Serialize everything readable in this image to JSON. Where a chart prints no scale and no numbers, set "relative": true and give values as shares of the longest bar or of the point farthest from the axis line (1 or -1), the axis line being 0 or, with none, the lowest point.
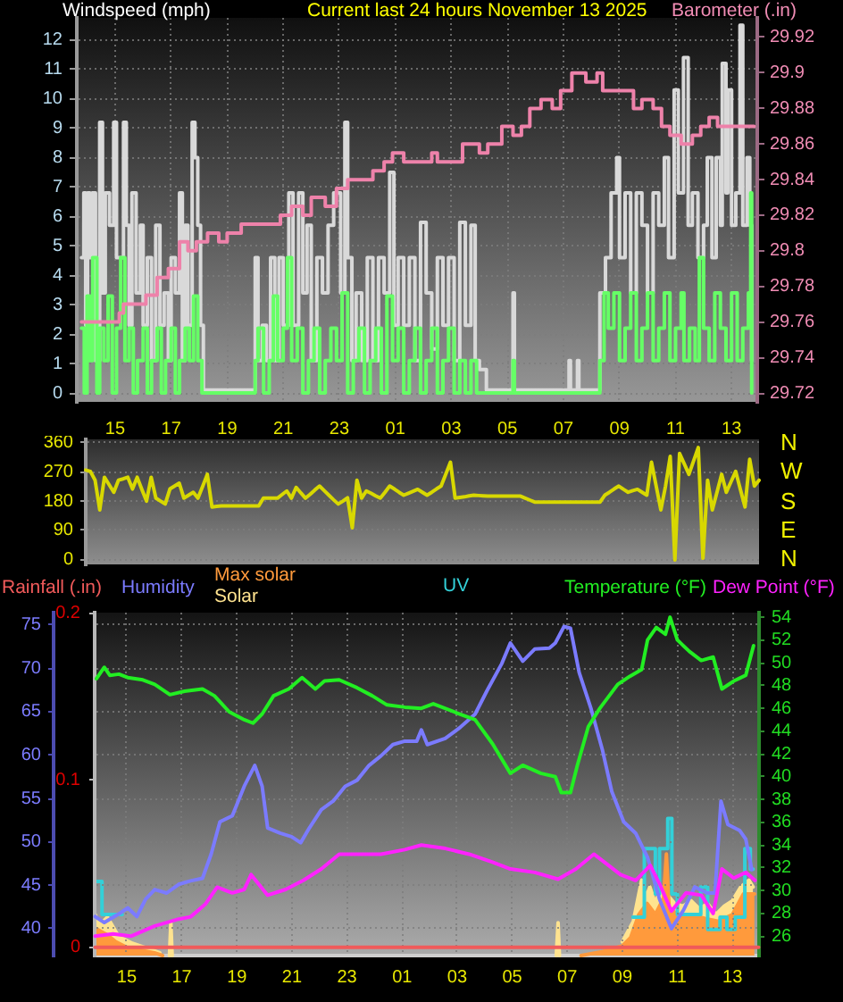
{
  "chart_data": [
    {
      "type": "step",
      "title": "Current last 24 hours November 13 2025",
      "ylabel": "Windspeed (mph)",
      "y2label": "Barometer (.in)",
      "xlim": [
        "2025-11-12T13:38",
        "2025-11-13T13:55"
      ],
      "xticks": [
        {
          "value": "2025-11-12T15:00",
          "label": "15"
        },
        {
          "value": "2025-11-12T17:00",
          "label": "17"
        },
        {
          "value": "2025-11-12T19:00",
          "label": "19"
        },
        {
          "value": "2025-11-12T21:00",
          "label": "21"
        },
        {
          "value": "2025-11-12T23:00",
          "label": "23"
        },
        {
          "value": "2025-11-13T01:00",
          "label": "01"
        },
        {
          "value": "2025-11-13T03:00",
          "label": "03"
        },
        {
          "value": "2025-11-13T05:00",
          "label": "05"
        },
        {
          "value": "2025-11-13T07:00",
          "label": "07"
        },
        {
          "value": "2025-11-13T09:00",
          "label": "09"
        },
        {
          "value": "2025-11-13T11:00",
          "label": "11"
        },
        {
          "value": "2025-11-13T13:00",
          "label": "13"
        }
      ],
      "ylim": [
        -0.3,
        12.75
      ],
      "yticks": [
        0,
        1,
        2,
        3,
        4,
        5,
        6,
        7,
        8,
        9,
        10,
        11,
        12
      ],
      "y2lim": [
        29.715,
        29.931
      ],
      "y2ticks": [
        29.72,
        29.74,
        29.76,
        29.78,
        29.8,
        29.82,
        29.84,
        29.86,
        29.88,
        29.9,
        29.92
      ],
      "grid": true,
      "series": [
        {
          "color": "#d9d9d9",
          "x": [
            "2025-11-12T13:48",
            "2025-11-12T13:53",
            "2025-11-12T13:57",
            "2025-11-12T14:01",
            "2025-11-12T14:06",
            "2025-11-12T14:11",
            "2025-11-12T14:18",
            "2025-11-12T14:27",
            "2025-11-12T14:33",
            "2025-11-12T14:39",
            "2025-11-12T14:48",
            "2025-11-12T14:57",
            "2025-11-12T15:03",
            "2025-11-12T15:18",
            "2025-11-12T15:24",
            "2025-11-12T15:30",
            "2025-11-12T15:36",
            "2025-11-12T15:45",
            "2025-11-12T15:54",
            "2025-11-12T16:00",
            "2025-11-12T16:09",
            "2025-11-12T16:18",
            "2025-11-12T16:27",
            "2025-11-12T16:36",
            "2025-11-12T16:45",
            "2025-11-12T16:54",
            "2025-11-12T17:00",
            "2025-11-12T17:09",
            "2025-11-12T17:18",
            "2025-11-12T17:24",
            "2025-11-12T17:30",
            "2025-11-12T17:36",
            "2025-11-12T17:45",
            "2025-11-12T17:51",
            "2025-11-12T17:57",
            "2025-11-12T18:03",
            "2025-11-12T18:09",
            "2025-11-12T20:00",
            "2025-11-12T20:06",
            "2025-11-12T20:15",
            "2025-11-12T20:24",
            "2025-11-12T20:33",
            "2025-11-12T20:42",
            "2025-11-12T20:51",
            "2025-11-12T21:00",
            "2025-11-12T21:12",
            "2025-11-12T21:21",
            "2025-11-12T21:33",
            "2025-11-12T21:42",
            "2025-11-12T21:51",
            "2025-11-12T22:00",
            "2025-11-12T22:12",
            "2025-11-12T22:24",
            "2025-11-12T22:36",
            "2025-11-12T22:48",
            "2025-11-12T23:03",
            "2025-11-12T23:12",
            "2025-11-12T23:18",
            "2025-11-12T23:27",
            "2025-11-12T23:36",
            "2025-11-12T23:48",
            "2025-11-13T00:00",
            "2025-11-13T00:12",
            "2025-11-13T00:24",
            "2025-11-13T00:36",
            "2025-11-13T00:48",
            "2025-11-13T00:57",
            "2025-11-13T01:06",
            "2025-11-13T01:18",
            "2025-11-13T01:30",
            "2025-11-13T01:42",
            "2025-11-13T01:54",
            "2025-11-13T02:06",
            "2025-11-13T02:18",
            "2025-11-13T02:30",
            "2025-11-13T02:42",
            "2025-11-13T02:54",
            "2025-11-13T03:06",
            "2025-11-13T03:18",
            "2025-11-13T03:30",
            "2025-11-13T03:42",
            "2025-11-13T03:51",
            "2025-11-13T04:00",
            "2025-11-13T04:15",
            "2025-11-13T05:12",
            "2025-11-13T05:15",
            "2025-11-13T07:12",
            "2025-11-13T07:15",
            "2025-11-13T07:30",
            "2025-11-13T07:33",
            "2025-11-13T08:18",
            "2025-11-13T08:30",
            "2025-11-13T08:42",
            "2025-11-13T08:54",
            "2025-11-13T09:00",
            "2025-11-13T09:12",
            "2025-11-13T09:24",
            "2025-11-13T09:36",
            "2025-11-13T09:48",
            "2025-11-13T10:00",
            "2025-11-13T10:12",
            "2025-11-13T10:24",
            "2025-11-13T10:36",
            "2025-11-13T10:45",
            "2025-11-13T10:57",
            "2025-11-13T11:06",
            "2025-11-13T11:17",
            "2025-11-13T11:27",
            "2025-11-13T11:36",
            "2025-11-13T11:48",
            "2025-11-13T12:00",
            "2025-11-13T12:08",
            "2025-11-13T12:18",
            "2025-11-13T12:27",
            "2025-11-13T12:36",
            "2025-11-13T12:40",
            "2025-11-13T12:48",
            "2025-11-13T12:52",
            "2025-11-13T13:00",
            "2025-11-13T13:09",
            "2025-11-13T13:18",
            "2025-11-13T13:24",
            "2025-11-13T13:33",
            "2025-11-13T13:39",
            "2025-11-13T13:43"
          ],
          "values": [
            4.6,
            6.8,
            2.3,
            6.8,
            4.6,
            6.8,
            1.1,
            9.2,
            3.4,
            6.8,
            5.7,
            9.2,
            4.6,
            9.2,
            5.7,
            2.3,
            6.8,
            3.4,
            5.7,
            2.3,
            4.6,
            1.1,
            5.7,
            2.3,
            3.4,
            1.1,
            4.6,
            3.4,
            6.8,
            1.1,
            5.7,
            2.3,
            9.2,
            8.0,
            5.7,
            2.3,
            0.1,
            4.6,
            1.1,
            2.3,
            1.1,
            4.6,
            1.1,
            4.6,
            2.3,
            6.8,
            2.3,
            6.8,
            3.4,
            5.7,
            1.1,
            4.6,
            3.4,
            5.7,
            6.8,
            3.4,
            9.2,
            4.6,
            1.1,
            3.4,
            1.1,
            4.6,
            1.1,
            4.6,
            3.4,
            7.5,
            2.3,
            4.6,
            2.3,
            4.6,
            1.1,
            5.8,
            3.4,
            1.5,
            4.6,
            2.3,
            4.6,
            1.1,
            5.8,
            2.3,
            5.7,
            1.1,
            0.8,
            0.1,
            3.4,
            0.1,
            1.1,
            0.1,
            1.1,
            0.1,
            3.4,
            4.6,
            6.8,
            8.0,
            4.6,
            6.8,
            3.4,
            6.8,
            5.7,
            3.4,
            6.8,
            5.7,
            8.0,
            4.6,
            10.3,
            6.8,
            11.4,
            5.7,
            6.8,
            4.6,
            5.7,
            8.0,
            4.6,
            8.0,
            5.7,
            11.2,
            6.8,
            10.3,
            5.7,
            6.8,
            12.5,
            5.7,
            8.0,
            5.7,
            1.1
          ]
        },
        {
          "color": "#66ff66",
          "x": [
            "2025-11-12T13:48",
            "2025-11-12T13:54",
            "2025-11-12T14:00",
            "2025-11-12T14:06",
            "2025-11-12T14:12",
            "2025-11-12T14:21",
            "2025-11-12T14:27",
            "2025-11-12T14:36",
            "2025-11-12T14:45",
            "2025-11-12T14:54",
            "2025-11-12T15:03",
            "2025-11-12T15:12",
            "2025-11-12T15:21",
            "2025-11-12T15:30",
            "2025-11-12T15:39",
            "2025-11-12T15:48",
            "2025-11-12T16:00",
            "2025-11-12T16:09",
            "2025-11-12T16:18",
            "2025-11-12T16:30",
            "2025-11-12T16:39",
            "2025-11-12T16:48",
            "2025-11-12T17:00",
            "2025-11-12T17:09",
            "2025-11-12T17:18",
            "2025-11-12T17:30",
            "2025-11-12T17:39",
            "2025-11-12T17:48",
            "2025-11-12T17:57",
            "2025-11-12T18:06",
            "2025-11-12T20:00",
            "2025-11-12T20:06",
            "2025-11-12T20:18",
            "2025-11-12T20:30",
            "2025-11-12T20:39",
            "2025-11-12T20:48",
            "2025-11-12T21:00",
            "2025-11-12T21:09",
            "2025-11-12T21:18",
            "2025-11-12T21:30",
            "2025-11-12T21:42",
            "2025-11-12T21:54",
            "2025-11-12T22:06",
            "2025-11-12T22:18",
            "2025-11-12T22:30",
            "2025-11-12T22:42",
            "2025-11-12T22:54",
            "2025-11-12T23:06",
            "2025-11-12T23:18",
            "2025-11-12T23:30",
            "2025-11-12T23:42",
            "2025-11-12T23:54",
            "2025-11-13T00:06",
            "2025-11-13T00:18",
            "2025-11-13T00:30",
            "2025-11-13T00:42",
            "2025-11-13T00:54",
            "2025-11-13T01:06",
            "2025-11-13T01:18",
            "2025-11-13T01:30",
            "2025-11-13T01:42",
            "2025-11-13T01:54",
            "2025-11-13T02:06",
            "2025-11-13T02:18",
            "2025-11-13T02:30",
            "2025-11-13T02:42",
            "2025-11-13T02:54",
            "2025-11-13T03:06",
            "2025-11-13T03:18",
            "2025-11-13T03:30",
            "2025-11-13T03:42",
            "2025-11-13T03:54",
            "2025-11-13T05:12",
            "2025-11-13T05:15",
            "2025-11-13T08:18",
            "2025-11-13T08:27",
            "2025-11-13T08:36",
            "2025-11-13T08:48",
            "2025-11-13T09:00",
            "2025-11-13T09:12",
            "2025-11-13T09:24",
            "2025-11-13T09:36",
            "2025-11-13T09:48",
            "2025-11-13T10:00",
            "2025-11-13T10:12",
            "2025-11-13T10:24",
            "2025-11-13T10:36",
            "2025-11-13T10:48",
            "2025-11-13T11:00",
            "2025-11-13T11:12",
            "2025-11-13T11:18",
            "2025-11-13T11:30",
            "2025-11-13T11:42",
            "2025-11-13T11:51",
            "2025-11-13T12:00",
            "2025-11-13T12:12",
            "2025-11-13T12:24",
            "2025-11-13T12:36",
            "2025-11-13T12:48",
            "2025-11-13T13:00",
            "2025-11-13T13:12",
            "2025-11-13T13:24",
            "2025-11-13T13:36",
            "2025-11-13T13:41",
            "2025-11-13T13:43"
          ],
          "values": [
            2.2,
            0,
            3.3,
            1.1,
            4.6,
            0,
            2.2,
            1.1,
            3.3,
            0,
            2.2,
            4.6,
            1.1,
            2.2,
            0,
            1.1,
            2.2,
            0,
            1.1,
            2.2,
            0,
            1.1,
            2.2,
            0,
            1.1,
            2.2,
            1.1,
            3.3,
            1.1,
            0,
            1.1,
            2.2,
            0,
            1.1,
            3.3,
            1.1,
            2.2,
            4.6,
            1.1,
            2.2,
            0,
            1.1,
            2.2,
            0,
            1.1,
            2.2,
            1.1,
            3.4,
            0,
            1.1,
            2.2,
            0,
            1.1,
            2.2,
            0,
            3.3,
            1.1,
            2.2,
            0,
            1.1,
            2.2,
            0,
            1.1,
            2.2,
            0,
            1.1,
            2.2,
            0,
            1.1,
            0,
            1.1,
            0,
            1.1,
            0,
            1.1,
            3.4,
            2.2,
            3.4,
            1.1,
            2.2,
            3.4,
            1.1,
            2.2,
            3.4,
            1.1,
            2.2,
            3.4,
            1.1,
            2.2,
            3.4,
            1.1,
            2.2,
            1.1,
            4.6,
            2.2,
            1.1,
            3.4,
            2.2,
            1.1,
            3.4,
            1.1,
            2.2,
            3.4,
            6.8,
            0
          ]
        },
        {
          "color": "#ee82aa",
          "axis": "y2",
          "x": [
            "2025-11-12T13:48",
            "2025-11-12T15:09",
            "2025-11-12T15:18",
            "2025-11-12T16:06",
            "2025-11-12T16:30",
            "2025-11-12T16:54",
            "2025-11-12T17:18",
            "2025-11-12T17:36",
            "2025-11-12T17:54",
            "2025-11-12T18:18",
            "2025-11-12T18:42",
            "2025-11-12T19:00",
            "2025-11-12T19:30",
            "2025-11-12T20:18",
            "2025-11-12T20:54",
            "2025-11-12T21:18",
            "2025-11-12T21:42",
            "2025-11-12T22:00",
            "2025-11-12T22:30",
            "2025-11-12T22:54",
            "2025-11-12T23:18",
            "2025-11-12T23:48",
            "2025-11-13T00:12",
            "2025-11-13T00:36",
            "2025-11-13T00:54",
            "2025-11-13T01:18",
            "2025-11-13T01:54",
            "2025-11-13T02:18",
            "2025-11-13T02:30",
            "2025-11-13T03:00",
            "2025-11-13T03:24",
            "2025-11-13T04:00",
            "2025-11-13T04:18",
            "2025-11-13T04:48",
            "2025-11-13T05:12",
            "2025-11-13T05:30",
            "2025-11-13T05:48",
            "2025-11-13T06:12",
            "2025-11-13T06:36",
            "2025-11-13T06:54",
            "2025-11-13T07:18",
            "2025-11-13T07:48",
            "2025-11-13T08:12",
            "2025-11-13T08:24",
            "2025-11-13T09:12",
            "2025-11-13T09:30",
            "2025-11-13T09:48",
            "2025-11-13T10:12",
            "2025-11-13T10:30",
            "2025-11-13T10:48",
            "2025-11-13T11:12",
            "2025-11-13T11:36",
            "2025-11-13T11:54",
            "2025-11-13T12:12",
            "2025-11-13T12:30",
            "2025-11-13T13:00",
            "2025-11-13T13:48"
          ],
          "values": [
            29.76,
            29.765,
            29.77,
            29.775,
            29.785,
            29.79,
            29.805,
            29.8,
            29.805,
            29.81,
            29.805,
            29.81,
            29.815,
            29.815,
            29.82,
            29.825,
            29.82,
            29.83,
            29.825,
            29.835,
            29.84,
            29.84,
            29.845,
            29.85,
            29.855,
            29.85,
            29.85,
            29.855,
            29.85,
            29.85,
            29.86,
            29.855,
            29.86,
            29.87,
            29.865,
            29.87,
            29.88,
            29.885,
            29.88,
            29.89,
            29.9,
            29.895,
            29.9,
            29.89,
            29.89,
            29.88,
            29.885,
            29.88,
            29.87,
            29.865,
            29.86,
            29.865,
            29.87,
            29.875,
            29.87,
            29.87,
            29.87
          ]
        }
      ]
    },
    {
      "type": "line",
      "categories": [
        null,
        null,
        null,
        null,
        null,
        null,
        null,
        null,
        null,
        null,
        null,
        null,
        null,
        null,
        null,
        null,
        null,
        null,
        null,
        null,
        null,
        null,
        null,
        null,
        null,
        null,
        null,
        null,
        null,
        null,
        null,
        null,
        null,
        null,
        null,
        null,
        null,
        null,
        null,
        null,
        null,
        null,
        null,
        null,
        null,
        null,
        null,
        null,
        null,
        null,
        null,
        null,
        null,
        null,
        null,
        null,
        null,
        null,
        null,
        null,
        null,
        null,
        null,
        null,
        null,
        null,
        null,
        null,
        null,
        null,
        null,
        null,
        null,
        null,
        null,
        null,
        null,
        null,
        null,
        null,
        null,
        null,
        null,
        null,
        null,
        null,
        null,
        null,
        null,
        null,
        null,
        null,
        null,
        null,
        null,
        null,
        null,
        null,
        null,
        null,
        null,
        null,
        null,
        null,
        null,
        null,
        null,
        null,
        null,
        null,
        null,
        null,
        null,
        null,
        null,
        null,
        null,
        null,
        null,
        null,
        null,
        null,
        null,
        null,
        null,
        null,
        null,
        null,
        null,
        null,
        null,
        null,
        null,
        null,
        null,
        null,
        null,
        null,
        null,
        null,
        null,
        null,
        null,
        null,
        null
      ],
      "ylim": [
        -14,
        369
      ],
      "yticks": [
        0,
        90,
        180,
        270,
        360
      ],
      "grid": "y",
      "annotations": [
        "N",
        "W",
        "S",
        "E",
        "N"
      ],
      "series": [
        {
          "color": "#d8d800",
          "values": [
            275,
            271,
            244,
            153,
            253,
            230,
            207,
            244,
            248,
            253,
            217,
            253,
            216,
            180,
            253,
            189,
            180,
            171,
            217,
            226,
            235,
            189,
            198,
            207,
            189,
            225,
            262,
            162,
            164,
            165,
            165,
            165,
            165,
            165,
            165,
            165,
            165,
            165,
            189,
            189,
            189,
            189,
            200,
            211,
            189,
            222,
            205,
            189,
            201,
            214,
            226,
            212,
            198,
            184,
            171,
            180,
            190,
            98,
            244,
            189,
            211,
            204,
            196,
            189,
            207,
            226,
            217,
            207,
            198,
            204,
            210,
            216,
            207,
            198,
            207,
            217,
            226,
            262,
            299,
            189,
            191,
            193,
            196,
            198,
            197,
            196,
            195,
            195,
            195,
            195,
            195,
            195,
            195,
            195,
            189,
            183,
            177,
            177,
            177,
            177,
            177,
            177,
            177,
            177,
            177,
            177,
            177,
            177,
            177,
            177,
            177,
            198,
            207,
            217,
            226,
            216,
            207,
            212,
            216,
            207,
            198,
            299,
            226,
            153,
            226,
            317,
            0,
            326,
            294,
            262,
            303,
            344,
            5,
            244,
            153,
            207,
            262,
            207,
            239,
            271,
            216,
            162,
            308,
            226,
            244
          ]
        }
      ]
    },
    {
      "type": "line",
      "legend": "top",
      "xlim": [
        "2025-11-12T13:50",
        "2025-11-13T13:58"
      ],
      "xticks": [
        {
          "value": "2025-11-12T15:00",
          "label": "15"
        },
        {
          "value": "2025-11-12T17:00",
          "label": "17"
        },
        {
          "value": "2025-11-12T19:00",
          "label": "19"
        },
        {
          "value": "2025-11-12T21:00",
          "label": "21"
        },
        {
          "value": "2025-11-12T23:00",
          "label": "23"
        },
        {
          "value": "2025-11-13T01:00",
          "label": "01"
        },
        {
          "value": "2025-11-13T03:00",
          "label": "03"
        },
        {
          "value": "2025-11-13T05:00",
          "label": "05"
        },
        {
          "value": "2025-11-13T07:00",
          "label": "07"
        },
        {
          "value": "2025-11-13T09:00",
          "label": "09"
        },
        {
          "value": "2025-11-13T11:00",
          "label": "11"
        },
        {
          "value": "2025-11-13T13:00",
          "label": "13"
        }
      ],
      "ylim": [
        36.9,
        76.4
      ],
      "yticks": [
        40,
        45,
        50,
        55,
        60,
        65,
        70,
        75
      ],
      "y2lim": [
        24.3,
        54.4
      ],
      "y2ticks": [
        26,
        28,
        30,
        32,
        34,
        36,
        38,
        40,
        42,
        44,
        46,
        48,
        50,
        52,
        54
      ],
      "y3lim": [
        -0.005,
        0.2
      ],
      "y3ticks": [
        0,
        0.1,
        0.2
      ],
      "grid": true,
      "series": [
        {
          "name": "Rainfall (.in)",
          "color": "#f05a5a",
          "axis": "y3",
          "x": [
            "2025-11-12T13:51",
            "2025-11-13T13:57"
          ],
          "values": [
            0,
            0
          ]
        },
        {
          "name": "Humidity",
          "color": "#7b7bff",
          "x": [
            "2025-11-12T13:51",
            "2025-11-12T14:11",
            "2025-11-12T14:43",
            "2025-11-12T15:02",
            "2025-11-12T15:22",
            "2025-11-12T15:41",
            "2025-11-12T16:01",
            "2025-11-12T16:27",
            "2025-11-12T16:53",
            "2025-11-12T17:19",
            "2025-11-12T17:45",
            "2025-11-12T18:04",
            "2025-11-12T18:23",
            "2025-11-12T18:50",
            "2025-11-12T19:16",
            "2025-11-12T19:39",
            "2025-11-12T19:55",
            "2025-11-12T20:07",
            "2025-11-12T20:34",
            "2025-11-12T20:59",
            "2025-11-12T21:19",
            "2025-11-12T21:38",
            "2025-11-12T22:04",
            "2025-11-12T22:30",
            "2025-11-12T22:56",
            "2025-11-12T23:22",
            "2025-11-12T23:48",
            "2025-11-13T00:14",
            "2025-11-13T00:40",
            "2025-11-13T01:06",
            "2025-11-13T01:32",
            "2025-11-13T01:42",
            "2025-11-13T01:55",
            "2025-11-13T02:34",
            "2025-11-13T03:07",
            "2025-11-13T03:39",
            "2025-11-13T04:05",
            "2025-11-13T04:37",
            "2025-11-13T04:56",
            "2025-11-13T05:23",
            "2025-11-13T05:49",
            "2025-11-13T06:21",
            "2025-11-13T06:34",
            "2025-11-13T06:53",
            "2025-11-13T07:07",
            "2025-11-13T07:26",
            "2025-11-13T07:52",
            "2025-11-13T08:17",
            "2025-11-13T08:37",
            "2025-11-13T09:03",
            "2025-11-13T09:29",
            "2025-11-13T09:55",
            "2025-11-13T10:21",
            "2025-11-13T10:47",
            "2025-11-13T11:13",
            "2025-11-13T11:38",
            "2025-11-13T12:05",
            "2025-11-13T12:22",
            "2025-11-13T12:35",
            "2025-11-13T12:50",
            "2025-11-13T13:16",
            "2025-11-13T13:29",
            "2025-11-13T13:42"
          ],
          "values": [
            41.4,
            40.7,
            41.7,
            42.4,
            41.4,
            43.4,
            44.5,
            44.1,
            45.1,
            45.5,
            45.8,
            48.6,
            52.3,
            53.0,
            56.4,
            58.8,
            56.4,
            51.6,
            51.0,
            50.6,
            49.9,
            51.6,
            53.7,
            54.7,
            56.4,
            57.1,
            58.8,
            59.9,
            61.2,
            61.6,
            61.6,
            62.9,
            61.2,
            61.9,
            63.2,
            64.7,
            67.4,
            70.5,
            72.9,
            70.8,
            72.2,
            72.3,
            72.9,
            74.8,
            74.6,
            69.5,
            65.3,
            60.5,
            55.8,
            52.3,
            51.0,
            48.2,
            43.4,
            40.0,
            42.1,
            44.8,
            44.1,
            44.1,
            54.7,
            52.0,
            51.3,
            50.3,
            46.8
          ]
        },
        {
          "name": "Temperature (°F)",
          "color": "#22ee22",
          "axis": "y2",
          "x": [
            "2025-11-12T13:54",
            "2025-11-12T14:11",
            "2025-11-12T14:23",
            "2025-11-12T14:43",
            "2025-11-12T15:02",
            "2025-11-12T15:35",
            "2025-11-12T16:01",
            "2025-11-12T16:34",
            "2025-11-12T17:06",
            "2025-11-12T17:45",
            "2025-11-12T18:11",
            "2025-11-12T18:43",
            "2025-11-12T19:16",
            "2025-11-12T19:35",
            "2025-11-12T19:55",
            "2025-11-12T20:20",
            "2025-11-12T20:53",
            "2025-11-12T21:22",
            "2025-11-12T21:51",
            "2025-11-12T22:11",
            "2025-11-12T22:43",
            "2025-11-12T23:22",
            "2025-11-12T23:55",
            "2025-11-13T00:27",
            "2025-11-13T01:06",
            "2025-11-13T01:42",
            "2025-11-13T02:08",
            "2025-11-13T02:59",
            "2025-11-13T03:39",
            "2025-11-13T04:17",
            "2025-11-13T04:56",
            "2025-11-13T05:23",
            "2025-11-13T06:02",
            "2025-11-13T06:34",
            "2025-11-13T06:47",
            "2025-11-13T07:07",
            "2025-11-13T07:22",
            "2025-11-13T07:46",
            "2025-11-13T08:11",
            "2025-11-13T08:50",
            "2025-11-13T09:16",
            "2025-11-13T09:42",
            "2025-11-13T09:55",
            "2025-11-13T10:14",
            "2025-11-13T10:34",
            "2025-11-13T10:44",
            "2025-11-13T11:00",
            "2025-11-13T11:26",
            "2025-11-13T11:52",
            "2025-11-13T12:18",
            "2025-11-13T12:37",
            "2025-11-13T13:03",
            "2025-11-13T13:29",
            "2025-11-13T13:46"
          ],
          "values": [
            48.6,
            49.6,
            48.9,
            49.0,
            48.7,
            48.5,
            48.1,
            47.2,
            47.5,
            47.7,
            47.1,
            45.7,
            45.0,
            44.7,
            45.5,
            47.1,
            47.7,
            48.7,
            47.7,
            48.4,
            48.5,
            47.8,
            47.1,
            46.3,
            46.1,
            46.0,
            46.4,
            45.6,
            45.0,
            42.9,
            40.3,
            41.0,
            40.3,
            40.0,
            38.6,
            38.6,
            41.0,
            44.4,
            46.0,
            48.1,
            48.8,
            49.4,
            52.0,
            53.1,
            52.5,
            54.0,
            52.0,
            51.0,
            50.2,
            50.5,
            47.7,
            48.4,
            48.9,
            51.5
          ]
        },
        {
          "name": "Dew Point (°F)",
          "color": "#ff22ff",
          "axis": "y2",
          "x": [
            "2025-11-12T13:51",
            "2025-11-12T14:30",
            "2025-11-12T15:09",
            "2025-11-12T16:01",
            "2025-11-12T16:53",
            "2025-11-12T17:19",
            "2025-11-12T17:51",
            "2025-11-12T18:17",
            "2025-11-12T18:50",
            "2025-11-12T19:16",
            "2025-11-12T19:31",
            "2025-11-12T20:07",
            "2025-11-12T20:46",
            "2025-11-12T21:25",
            "2025-11-12T22:04",
            "2025-11-12T22:43",
            "2025-11-12T23:22",
            "2025-11-13T00:14",
            "2025-11-13T01:06",
            "2025-11-13T01:42",
            "2025-11-13T02:34",
            "2025-11-13T03:26",
            "2025-11-13T04:17",
            "2025-11-13T04:56",
            "2025-11-13T05:49",
            "2025-11-13T06:40",
            "2025-11-13T07:19",
            "2025-11-13T07:58",
            "2025-11-13T08:24",
            "2025-11-13T08:56",
            "2025-11-13T09:29",
            "2025-11-13T10:01",
            "2025-11-13T10:21",
            "2025-11-13T10:47",
            "2025-11-13T11:19",
            "2025-11-13T11:52",
            "2025-11-13T12:18",
            "2025-11-13T12:37",
            "2025-11-13T13:03",
            "2025-11-13T13:29",
            "2025-11-13T13:49"
          ],
          "values": [
            26.0,
            26.2,
            26.0,
            26.9,
            27.5,
            27.7,
            28.8,
            30.3,
            29.8,
            30.1,
            31.4,
            29.6,
            30.1,
            30.9,
            31.9,
            33.2,
            33.2,
            33.2,
            33.6,
            34.0,
            33.7,
            33.2,
            32.5,
            31.9,
            31.6,
            31.0,
            31.9,
            33.2,
            32.4,
            31.4,
            30.9,
            32.2,
            30.6,
            28.2,
            29.8,
            29.6,
            28.0,
            31.9,
            31.1,
            31.6,
            30.9
          ]
        }
      ]
    },
    {
      "type": "area",
      "relative": true,
      "legend": "top",
      "xlim": [
        "2025-11-12T13:50",
        "2025-11-13T13:58"
      ],
      "series": [
        {
          "name": "Max solar",
          "color": "#ff9a3c",
          "x": [
            "2025-11-12T13:51",
            "2025-11-12T14:18",
            "2025-11-12T14:36",
            "2025-11-12T15:00",
            "2025-11-12T15:30",
            "2025-11-12T16:00",
            "2025-11-12T16:18",
            "2025-11-13T00:00",
            "2025-11-13T07:30",
            "2025-11-13T08:18",
            "2025-11-13T09:00",
            "2025-11-13T09:18",
            "2025-11-13T09:36",
            "2025-11-13T09:54",
            "2025-11-13T10:12",
            "2025-11-13T10:30",
            "2025-11-13T10:36",
            "2025-11-13T10:42",
            "2025-11-13T11:00",
            "2025-11-13T11:30",
            "2025-11-13T12:00",
            "2025-11-13T12:30",
            "2025-11-13T13:00",
            "2025-11-13T13:24",
            "2025-11-13T13:48"
          ],
          "values": [
            0.2,
            0.15,
            0.1,
            0.06,
            0.04,
            0.02,
            0,
            null,
            0,
            0.03,
            0.07,
            0.13,
            0.3,
            0.38,
            0.3,
            0.42,
            0.74,
            0.35,
            0.3,
            0.3,
            0.27,
            0.25,
            0.3,
            0.45,
            0.45
          ]
        },
        {
          "name": "Solar",
          "color": "#ffe38f",
          "x": [
            "2025-11-12T13:51",
            "2025-11-12T14:00",
            "2025-11-12T14:18",
            "2025-11-12T14:42",
            "2025-11-12T15:12",
            "2025-11-12T15:48",
            "2025-11-12T16:12",
            "2025-11-12T16:20",
            "2025-11-12T16:33",
            "2025-11-12T16:36",
            "2025-11-12T16:39",
            "2025-11-13T00:00",
            "2025-11-13T06:36",
            "2025-11-13T06:40",
            "2025-11-13T06:43",
            "2025-11-13T07:00",
            "2025-11-13T09:00",
            "2025-11-13T09:24",
            "2025-11-13T09:42",
            "2025-11-13T09:51",
            "2025-11-13T10:00",
            "2025-11-13T10:12",
            "2025-11-13T10:24",
            "2025-11-13T10:54",
            "2025-11-13T11:12",
            "2025-11-13T11:30",
            "2025-11-13T11:48",
            "2025-11-13T12:06",
            "2025-11-13T12:24",
            "2025-11-13T12:42",
            "2025-11-13T13:00",
            "2025-11-13T13:18",
            "2025-11-13T13:36",
            "2025-11-13T13:45"
          ],
          "values": [
            0.3,
            0.22,
            0.28,
            0.14,
            0.09,
            0.05,
            0.02,
            null,
            0,
            0.24,
            0,
            null,
            0,
            0.24,
            0,
            null,
            0.1,
            0.25,
            0.55,
            0.42,
            0.5,
            0.38,
            0.5,
            0.38,
            0.36,
            0.4,
            0.34,
            0.38,
            0.3,
            0.36,
            0.4,
            0.5,
            0.55,
            0.5
          ]
        },
        {
          "name": "UV",
          "color": "#33d0d8",
          "type": "step",
          "x": [
            "2025-11-12T13:54",
            "2025-11-12T14:06",
            "2025-11-12T14:50",
            "2025-11-12T14:54",
            "2025-11-13T09:23",
            "2025-11-13T09:48",
            "2025-11-13T10:12",
            "2025-11-13T10:21",
            "2025-11-13T10:39",
            "2025-11-13T10:48",
            "2025-11-13T11:00",
            "2025-11-13T11:51",
            "2025-11-13T12:06",
            "2025-11-13T12:33",
            "2025-11-13T12:48",
            "2025-11-13T13:06",
            "2025-11-13T13:27",
            "2025-11-13T13:39",
            "2025-11-13T13:45"
          ],
          "values": [
            0.54,
            0.3,
            0.3,
            null,
            0.28,
            0.78,
            0.45,
            0.78,
            1.0,
            0.45,
            0.3,
            0.5,
            0.19,
            0.28,
            0.19,
            0.28,
            0.78,
            0.63,
            0.63
          ]
        }
      ]
    }
  ]
}
